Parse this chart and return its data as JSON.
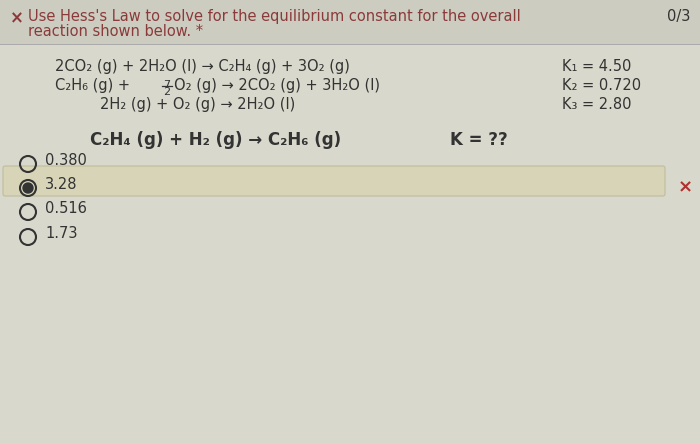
{
  "bg_color": "#d8d8cc",
  "text_color": "#333333",
  "red_color": "#b03030",
  "header_color": "#8b3a3a",
  "score": "0/3",
  "choices": [
    "0.380",
    "3.28",
    "0.516",
    "1.73"
  ],
  "selected_choice": 1,
  "k1": "K₁ = 4.50",
  "k2": "K₂ = 0.720",
  "k3": "K₃ = 2.80",
  "highlight_color": "#d8d4b8",
  "highlight_edge": "#c0bc9c"
}
